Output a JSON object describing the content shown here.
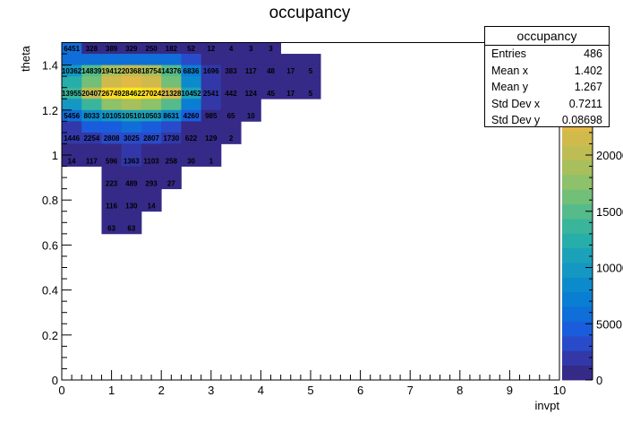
{
  "chart_data": {
    "type": "heatmap",
    "title": "occupancy",
    "xlabel": "invpt",
    "ylabel": "theta",
    "xlim": [
      0,
      10
    ],
    "ylim": [
      0,
      1.5
    ],
    "x_ticks": [
      "0",
      "1",
      "2",
      "3",
      "4",
      "5",
      "6",
      "7",
      "8",
      "9",
      "10"
    ],
    "y_ticks": [
      "0",
      "0.2",
      "0.4",
      "0.6",
      "0.8",
      "1",
      "1.2",
      "1.4"
    ],
    "bin_width_x": 0.4,
    "bin_width_y": 0.05,
    "zmax": 30000,
    "colorbar_ticks": [
      "0",
      "5000",
      "10000",
      "15000",
      "20000"
    ],
    "cells": [
      {
        "x": 0.2,
        "y": 1.475,
        "label": "6451",
        "z": 6451
      },
      {
        "x": 0.6,
        "y": 1.475,
        "label": "328",
        "z": 328
      },
      {
        "x": 1.0,
        "y": 1.475,
        "label": "389",
        "z": 389
      },
      {
        "x": 1.4,
        "y": 1.475,
        "label": "329",
        "z": 329
      },
      {
        "x": 1.8,
        "y": 1.475,
        "label": "250",
        "z": 250
      },
      {
        "x": 2.2,
        "y": 1.475,
        "label": "182",
        "z": 182
      },
      {
        "x": 2.6,
        "y": 1.475,
        "label": "52",
        "z": 52
      },
      {
        "x": 3.0,
        "y": 1.475,
        "label": "12",
        "z": 12
      },
      {
        "x": 3.4,
        "y": 1.475,
        "label": "4",
        "z": 4
      },
      {
        "x": 3.8,
        "y": 1.475,
        "label": "3",
        "z": 3
      },
      {
        "x": 4.2,
        "y": 1.475,
        "label": "3",
        "z": 3
      },
      {
        "x": 0.2,
        "y": 1.425,
        "label": "",
        "z": 6000
      },
      {
        "x": 0.6,
        "y": 1.425,
        "label": "",
        "z": 6500
      },
      {
        "x": 1.0,
        "y": 1.425,
        "label": "",
        "z": 6500
      },
      {
        "x": 1.4,
        "y": 1.425,
        "label": "",
        "z": 6500
      },
      {
        "x": 1.8,
        "y": 1.425,
        "label": "",
        "z": 6500
      },
      {
        "x": 2.2,
        "y": 1.425,
        "label": "",
        "z": 6000
      },
      {
        "x": 2.6,
        "y": 1.425,
        "label": "",
        "z": 3000
      },
      {
        "x": 3.0,
        "y": 1.425,
        "label": "",
        "z": 600
      },
      {
        "x": 3.4,
        "y": 1.425,
        "label": "",
        "z": 300
      },
      {
        "x": 3.8,
        "y": 1.425,
        "label": "",
        "z": 200
      },
      {
        "x": 4.2,
        "y": 1.425,
        "label": "",
        "z": 100
      },
      {
        "x": 4.6,
        "y": 1.425,
        "label": "",
        "z": 50
      },
      {
        "x": 5.0,
        "y": 1.425,
        "label": "",
        "z": 20
      },
      {
        "x": 0.2,
        "y": 1.375,
        "label": "10362",
        "z": 10362
      },
      {
        "x": 0.6,
        "y": 1.375,
        "label": "14839",
        "z": 14839
      },
      {
        "x": 1.0,
        "y": 1.375,
        "label": "19412",
        "z": 19412
      },
      {
        "x": 1.4,
        "y": 1.375,
        "label": "20368",
        "z": 20368
      },
      {
        "x": 1.8,
        "y": 1.375,
        "label": "18754",
        "z": 18754
      },
      {
        "x": 2.2,
        "y": 1.375,
        "label": "14376",
        "z": 14376
      },
      {
        "x": 2.6,
        "y": 1.375,
        "label": "6836",
        "z": 6836
      },
      {
        "x": 3.0,
        "y": 1.375,
        "label": "1696",
        "z": 1696
      },
      {
        "x": 3.4,
        "y": 1.375,
        "label": "383",
        "z": 383
      },
      {
        "x": 3.8,
        "y": 1.375,
        "label": "117",
        "z": 117
      },
      {
        "x": 4.2,
        "y": 1.375,
        "label": "48",
        "z": 48
      },
      {
        "x": 4.6,
        "y": 1.375,
        "label": "17",
        "z": 17
      },
      {
        "x": 5.0,
        "y": 1.375,
        "label": "5",
        "z": 5
      },
      {
        "x": 0.2,
        "y": 1.325,
        "label": "",
        "z": 12000
      },
      {
        "x": 0.6,
        "y": 1.325,
        "label": "",
        "z": 16500
      },
      {
        "x": 1.0,
        "y": 1.325,
        "label": "",
        "z": 21500
      },
      {
        "x": 1.4,
        "y": 1.325,
        "label": "",
        "z": 23000
      },
      {
        "x": 1.8,
        "y": 1.325,
        "label": "",
        "z": 21000
      },
      {
        "x": 2.2,
        "y": 1.325,
        "label": "",
        "z": 16500
      },
      {
        "x": 2.6,
        "y": 1.325,
        "label": "",
        "z": 8500
      },
      {
        "x": 3.0,
        "y": 1.325,
        "label": "",
        "z": 2000
      },
      {
        "x": 3.4,
        "y": 1.325,
        "label": "",
        "z": 400
      },
      {
        "x": 3.8,
        "y": 1.325,
        "label": "",
        "z": 120
      },
      {
        "x": 4.2,
        "y": 1.325,
        "label": "",
        "z": 45
      },
      {
        "x": 4.6,
        "y": 1.325,
        "label": "",
        "z": 17
      },
      {
        "x": 5.0,
        "y": 1.325,
        "label": "",
        "z": 5
      },
      {
        "x": 0.2,
        "y": 1.275,
        "label": "13955",
        "z": 13955
      },
      {
        "x": 0.6,
        "y": 1.275,
        "label": "20407",
        "z": 20407
      },
      {
        "x": 1.0,
        "y": 1.275,
        "label": "26749",
        "z": 26749
      },
      {
        "x": 1.4,
        "y": 1.275,
        "label": "28462",
        "z": 28462
      },
      {
        "x": 1.8,
        "y": 1.275,
        "label": "27024",
        "z": 27024
      },
      {
        "x": 2.2,
        "y": 1.275,
        "label": "21328",
        "z": 21328
      },
      {
        "x": 2.6,
        "y": 1.275,
        "label": "10452",
        "z": 10452
      },
      {
        "x": 3.0,
        "y": 1.275,
        "label": "2541",
        "z": 2541
      },
      {
        "x": 3.4,
        "y": 1.275,
        "label": "442",
        "z": 442
      },
      {
        "x": 3.8,
        "y": 1.275,
        "label": "124",
        "z": 124
      },
      {
        "x": 4.2,
        "y": 1.275,
        "label": "45",
        "z": 45
      },
      {
        "x": 4.6,
        "y": 1.275,
        "label": "17",
        "z": 17
      },
      {
        "x": 5.0,
        "y": 1.275,
        "label": "5",
        "z": 5
      },
      {
        "x": 0.2,
        "y": 1.225,
        "label": "",
        "z": 9500
      },
      {
        "x": 0.6,
        "y": 1.225,
        "label": "",
        "z": 13500
      },
      {
        "x": 1.0,
        "y": 1.225,
        "label": "",
        "z": 17500
      },
      {
        "x": 1.4,
        "y": 1.225,
        "label": "",
        "z": 18500
      },
      {
        "x": 1.8,
        "y": 1.225,
        "label": "",
        "z": 17500
      },
      {
        "x": 2.2,
        "y": 1.225,
        "label": "",
        "z": 14500
      },
      {
        "x": 2.6,
        "y": 1.225,
        "label": "",
        "z": 7000
      },
      {
        "x": 3.0,
        "y": 1.225,
        "label": "",
        "z": 1600
      },
      {
        "x": 3.4,
        "y": 1.225,
        "label": "",
        "z": 200
      },
      {
        "x": 3.8,
        "y": 1.225,
        "label": "",
        "z": 40
      },
      {
        "x": 0.2,
        "y": 1.175,
        "label": "5456",
        "z": 5456
      },
      {
        "x": 0.6,
        "y": 1.175,
        "label": "8033",
        "z": 8033
      },
      {
        "x": 1.0,
        "y": 1.175,
        "label": "10105",
        "z": 10105
      },
      {
        "x": 1.4,
        "y": 1.175,
        "label": "10510",
        "z": 10510
      },
      {
        "x": 1.8,
        "y": 1.175,
        "label": "10503",
        "z": 10503
      },
      {
        "x": 2.2,
        "y": 1.175,
        "label": "8631",
        "z": 8631
      },
      {
        "x": 2.6,
        "y": 1.175,
        "label": "4260",
        "z": 4260
      },
      {
        "x": 3.0,
        "y": 1.175,
        "label": "985",
        "z": 985
      },
      {
        "x": 3.4,
        "y": 1.175,
        "label": "65",
        "z": 65
      },
      {
        "x": 3.8,
        "y": 1.175,
        "label": "10",
        "z": 10
      },
      {
        "x": 0.2,
        "y": 1.125,
        "label": "",
        "z": 2500
      },
      {
        "x": 0.6,
        "y": 1.125,
        "label": "",
        "z": 4000
      },
      {
        "x": 1.0,
        "y": 1.125,
        "label": "",
        "z": 5000
      },
      {
        "x": 1.4,
        "y": 1.125,
        "label": "",
        "z": 5500
      },
      {
        "x": 1.8,
        "y": 1.125,
        "label": "",
        "z": 5000
      },
      {
        "x": 2.2,
        "y": 1.125,
        "label": "",
        "z": 3000
      },
      {
        "x": 2.6,
        "y": 1.125,
        "label": "",
        "z": 1200
      },
      {
        "x": 3.0,
        "y": 1.125,
        "label": "",
        "z": 300
      },
      {
        "x": 3.4,
        "y": 1.125,
        "label": "",
        "z": 20
      },
      {
        "x": 0.2,
        "y": 1.075,
        "label": "1446",
        "z": 1446
      },
      {
        "x": 0.6,
        "y": 1.075,
        "label": "2254",
        "z": 2254
      },
      {
        "x": 1.0,
        "y": 1.075,
        "label": "2808",
        "z": 2808
      },
      {
        "x": 1.4,
        "y": 1.075,
        "label": "3025",
        "z": 3025
      },
      {
        "x": 1.8,
        "y": 1.075,
        "label": "2807",
        "z": 2807
      },
      {
        "x": 2.2,
        "y": 1.075,
        "label": "1730",
        "z": 1730
      },
      {
        "x": 2.6,
        "y": 1.075,
        "label": "622",
        "z": 622
      },
      {
        "x": 3.0,
        "y": 1.075,
        "label": "129",
        "z": 129
      },
      {
        "x": 3.4,
        "y": 1.075,
        "label": "2",
        "z": 2
      },
      {
        "x": 0.2,
        "y": 1.025,
        "label": "",
        "z": 400
      },
      {
        "x": 0.6,
        "y": 1.025,
        "label": "",
        "z": 600
      },
      {
        "x": 1.0,
        "y": 1.025,
        "label": "",
        "z": 1100
      },
      {
        "x": 1.4,
        "y": 1.025,
        "label": "",
        "z": 1500
      },
      {
        "x": 1.8,
        "y": 1.025,
        "label": "",
        "z": 1300
      },
      {
        "x": 2.2,
        "y": 1.025,
        "label": "",
        "z": 500
      },
      {
        "x": 2.6,
        "y": 1.025,
        "label": "",
        "z": 100
      },
      {
        "x": 3.0,
        "y": 1.025,
        "label": "",
        "z": 10
      },
      {
        "x": 0.2,
        "y": 0.975,
        "label": "14",
        "z": 14
      },
      {
        "x": 0.6,
        "y": 0.975,
        "label": "117",
        "z": 117
      },
      {
        "x": 1.0,
        "y": 0.975,
        "label": "596",
        "z": 596
      },
      {
        "x": 1.4,
        "y": 0.975,
        "label": "1363",
        "z": 1363
      },
      {
        "x": 1.8,
        "y": 0.975,
        "label": "1103",
        "z": 1103
      },
      {
        "x": 2.2,
        "y": 0.975,
        "label": "258",
        "z": 258
      },
      {
        "x": 2.6,
        "y": 0.975,
        "label": "30",
        "z": 30
      },
      {
        "x": 3.0,
        "y": 0.975,
        "label": "1",
        "z": 1
      },
      {
        "x": 1.0,
        "y": 0.925,
        "label": "",
        "z": 400
      },
      {
        "x": 1.4,
        "y": 0.925,
        "label": "",
        "z": 800
      },
      {
        "x": 1.8,
        "y": 0.925,
        "label": "",
        "z": 400
      },
      {
        "x": 2.2,
        "y": 0.925,
        "label": "",
        "z": 100
      },
      {
        "x": 1.0,
        "y": 0.875,
        "label": "223",
        "z": 223
      },
      {
        "x": 1.4,
        "y": 0.875,
        "label": "489",
        "z": 489
      },
      {
        "x": 1.8,
        "y": 0.875,
        "label": "293",
        "z": 293
      },
      {
        "x": 2.2,
        "y": 0.875,
        "label": "27",
        "z": 27
      },
      {
        "x": 1.0,
        "y": 0.825,
        "label": "",
        "z": 150
      },
      {
        "x": 1.4,
        "y": 0.825,
        "label": "",
        "z": 200
      },
      {
        "x": 1.8,
        "y": 0.825,
        "label": "",
        "z": 50
      },
      {
        "x": 1.0,
        "y": 0.775,
        "label": "116",
        "z": 116
      },
      {
        "x": 1.4,
        "y": 0.775,
        "label": "130",
        "z": 130
      },
      {
        "x": 1.8,
        "y": 0.775,
        "label": "14",
        "z": 14
      },
      {
        "x": 1.0,
        "y": 0.725,
        "label": "",
        "z": 80
      },
      {
        "x": 1.4,
        "y": 0.725,
        "label": "",
        "z": 70
      },
      {
        "x": 1.0,
        "y": 0.675,
        "label": "63",
        "z": 63
      },
      {
        "x": 1.4,
        "y": 0.675,
        "label": "63",
        "z": 63
      }
    ],
    "stats": {
      "title": "occupancy",
      "rows": [
        {
          "label": "Entries",
          "value": "486"
        },
        {
          "label": "Mean x",
          "value": "1.402"
        },
        {
          "label": "Mean y",
          "value": "1.267"
        },
        {
          "label": "Std Dev x",
          "value": "0.7211"
        },
        {
          "label": "Std Dev y",
          "value": "0.08698"
        }
      ]
    },
    "palette": [
      "#352a87",
      "#3238a7",
      "#2a4bc9",
      "#1a5ddc",
      "#0f6ed8",
      "#0a7ed2",
      "#0c8bcc",
      "#1497c3",
      "#1ca2b8",
      "#27adaa",
      "#3ab59b",
      "#55bb8a",
      "#72bf78",
      "#8dc16a",
      "#a8bf5c",
      "#bebd53",
      "#d1ba4c",
      "#e2b946",
      "#f0bd3b",
      "#f8c92f",
      "#fbd926",
      "#f9e81d",
      "#f9fb0e"
    ]
  }
}
